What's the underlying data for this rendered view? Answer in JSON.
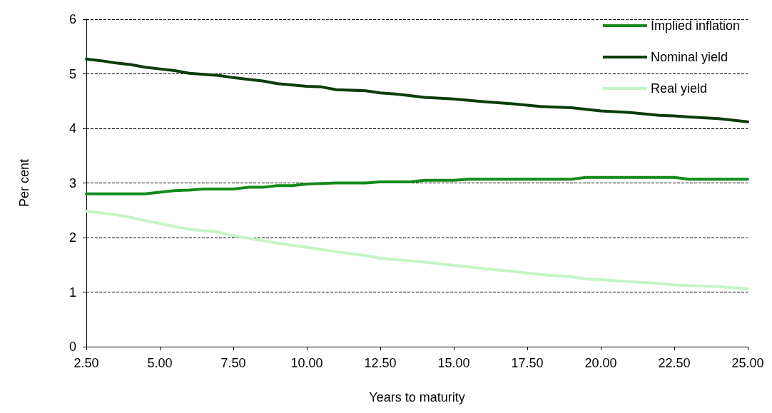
{
  "chart_data": {
    "type": "line",
    "xlabel": "Years to maturity",
    "ylabel": "Per cent",
    "xlim": [
      2.5,
      25
    ],
    "xticks": [
      {
        "value": 2.5,
        "label": "2.50"
      },
      {
        "value": 5,
        "label": "5.00"
      },
      {
        "value": 7.5,
        "label": "7.50"
      },
      {
        "value": 10,
        "label": "10.00"
      },
      {
        "value": 12.5,
        "label": "12.50"
      },
      {
        "value": 15,
        "label": "15.00"
      },
      {
        "value": 17.5,
        "label": "17.50"
      },
      {
        "value": 20,
        "label": "20.00"
      },
      {
        "value": 22.5,
        "label": "22.50"
      },
      {
        "value": 25,
        "label": "25.00"
      }
    ],
    "ylim": [
      0,
      6
    ],
    "yticks": [
      0,
      1,
      2,
      3,
      4,
      5,
      6
    ],
    "grid": "y",
    "legend": "top right",
    "marker": "none",
    "series": [
      {
        "name": "Implied inflation",
        "color": "#138a1b",
        "x": [
          2.5,
          4.5,
          5,
          5.5,
          6,
          6.5,
          7.5,
          8,
          8.5,
          9,
          9.5,
          10,
          11,
          12,
          12.5,
          13.5,
          14,
          15,
          15.5,
          19,
          19.5,
          22.5,
          23,
          25
        ],
        "values": [
          2.8,
          2.8,
          2.83,
          2.86,
          2.87,
          2.89,
          2.89,
          2.92,
          2.92,
          2.95,
          2.95,
          2.98,
          3.0,
          3.0,
          3.02,
          3.02,
          3.05,
          3.05,
          3.07,
          3.07,
          3.1,
          3.1,
          3.07,
          3.07
        ]
      },
      {
        "name": "Nominal yield",
        "color": "#0b3d0b",
        "x": [
          2.5,
          3,
          3.5,
          4,
          4.5,
          5,
          5.5,
          6,
          7,
          7.5,
          8,
          8.5,
          9,
          10,
          10.5,
          11,
          12,
          12.5,
          13,
          13.5,
          14,
          15,
          16,
          17,
          18,
          19,
          20,
          21,
          22,
          22.5,
          23,
          24,
          24.5,
          25
        ],
        "values": [
          5.27,
          5.24,
          5.2,
          5.17,
          5.12,
          5.09,
          5.06,
          5.01,
          4.97,
          4.93,
          4.9,
          4.87,
          4.82,
          4.77,
          4.76,
          4.71,
          4.69,
          4.65,
          4.63,
          4.6,
          4.57,
          4.54,
          4.49,
          4.45,
          4.4,
          4.38,
          4.32,
          4.29,
          4.24,
          4.23,
          4.21,
          4.18,
          4.15,
          4.12
        ]
      },
      {
        "name": "Real yield",
        "color": "#c4f5c4",
        "x": [
          2.5,
          3,
          3.5,
          4,
          4.5,
          5,
          5.5,
          6,
          7,
          7.5,
          8,
          8.5,
          9,
          10,
          11,
          12,
          12.5,
          14,
          15,
          16,
          17,
          18,
          19,
          19.5,
          20,
          21,
          22,
          22.5,
          23,
          24,
          25
        ],
        "values": [
          2.48,
          2.45,
          2.42,
          2.37,
          2.31,
          2.26,
          2.2,
          2.15,
          2.1,
          2.03,
          1.99,
          1.94,
          1.9,
          1.82,
          1.74,
          1.67,
          1.62,
          1.55,
          1.49,
          1.43,
          1.38,
          1.32,
          1.28,
          1.24,
          1.23,
          1.19,
          1.16,
          1.13,
          1.12,
          1.1,
          1.06
        ]
      }
    ]
  }
}
